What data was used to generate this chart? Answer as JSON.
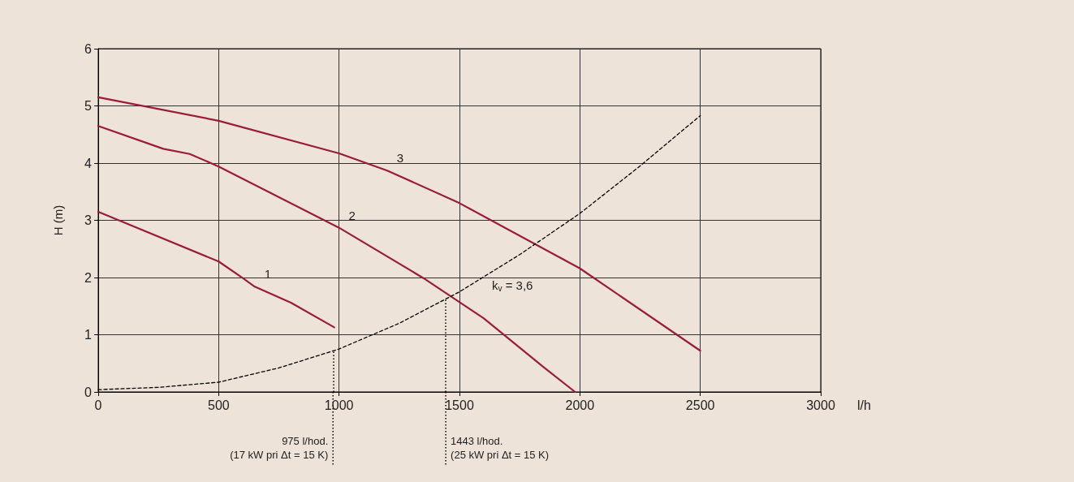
{
  "chart_data": {
    "type": "line",
    "xlabel": "l/h",
    "ylabel": "H (m)",
    "xlim": [
      0,
      3000
    ],
    "xticks": [
      0,
      500,
      1000,
      1500,
      2000,
      2500,
      3000
    ],
    "ylim": [
      0,
      6
    ],
    "yticks": [
      0,
      1,
      2,
      3,
      4,
      5,
      6
    ],
    "grid": true,
    "legend": false,
    "marker": "none",
    "series": [
      {
        "name": "1",
        "color": "#9b1b3a",
        "line_style": "solid",
        "x": [
          0,
          500,
          600,
          650,
          800,
          980
        ],
        "values": [
          3.15,
          2.28,
          1.99,
          1.84,
          1.56,
          1.13
        ]
      },
      {
        "name": "2",
        "color": "#9b1b3a",
        "line_style": "solid",
        "x": [
          0,
          270,
          380,
          500,
          1000,
          1350,
          1600,
          1850,
          1980
        ],
        "values": [
          4.65,
          4.25,
          4.16,
          3.94,
          2.87,
          1.99,
          1.29,
          0.43,
          0
        ]
      },
      {
        "name": "3",
        "color": "#9b1b3a",
        "line_style": "solid",
        "x": [
          0,
          500,
          1000,
          1200,
          1500,
          2000,
          2500
        ],
        "values": [
          5.15,
          4.74,
          4.17,
          3.87,
          3.3,
          2.16,
          0.72
        ]
      },
      {
        "name": "k$_{v}$ = 3,6",
        "color": "#000000",
        "line_style": "dashed",
        "x": [
          0,
          250,
          500,
          750,
          1000,
          1250,
          1500,
          1750,
          2000,
          2250,
          2500
        ],
        "values": [
          0.04,
          0.08,
          0.17,
          0.42,
          0.75,
          1.2,
          1.75,
          2.4,
          3.12,
          3.95,
          4.83
        ]
      }
    ],
    "ref_lines": [
      {
        "axis": "x",
        "value": 975,
        "label": "975 l/hod.\n(17 kW pri Δt = 15 K)",
        "color": "#000000",
        "line_style": "dotted"
      },
      {
        "axis": "x",
        "value": 1443,
        "label": "1443 l/hod.\n(25 kW pri Δt = 15 K)",
        "color": "#000000",
        "line_style": "dotted"
      }
    ]
  }
}
